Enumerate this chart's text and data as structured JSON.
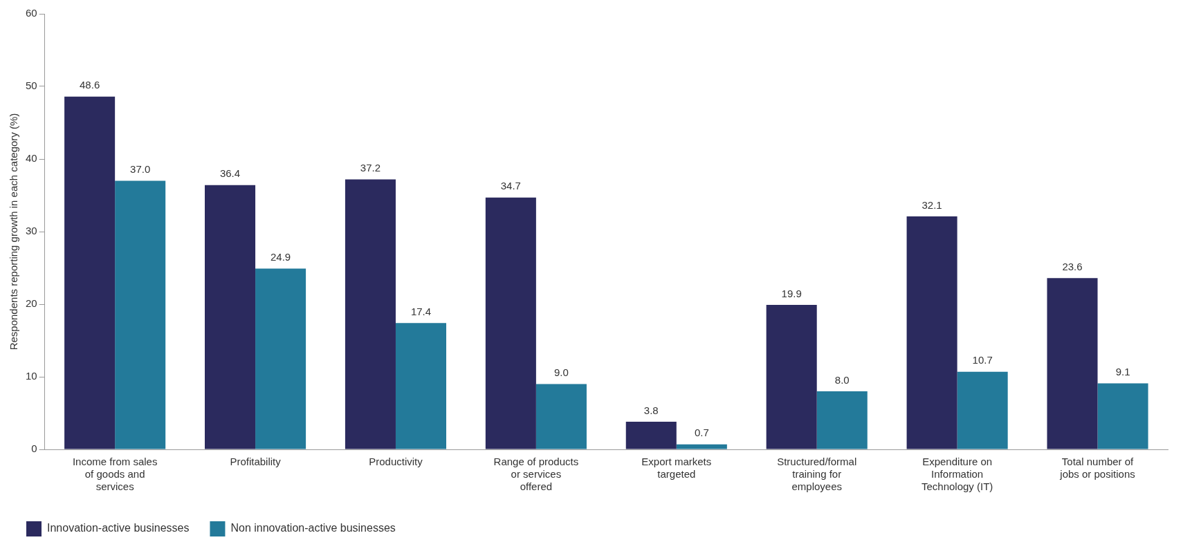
{
  "chart_data": {
    "type": "bar",
    "ylabel": "Respondents reporting growth in each category (%)",
    "categories": [
      "Income from sales of goods and services",
      "Profitability",
      "Productivity",
      "Range of products or services offered",
      "Export markets targeted",
      "Structured/formal training for employees",
      "Expenditure on Information Technology (IT)",
      "Total number of jobs or positions"
    ],
    "series": [
      {
        "name": "Innovation-active businesses",
        "color": "#2b2a5e",
        "values": [
          48.6,
          36.4,
          37.2,
          34.7,
          3.8,
          19.9,
          32.1,
          23.6
        ],
        "value_labels": [
          "48.6",
          "36.4",
          "37.2",
          "34.7",
          "3.8",
          "19.9",
          "32.1",
          "23.6"
        ]
      },
      {
        "name": "Non innovation-active businesses",
        "color": "#237a9a",
        "values": [
          37.0,
          24.9,
          17.4,
          9.0,
          0.7,
          8.0,
          10.7,
          9.1
        ],
        "value_labels": [
          "37.0",
          "24.9",
          "17.4",
          "9.0",
          "0.7",
          "8.0",
          "10.7",
          "9.1"
        ]
      }
    ],
    "ylim": [
      0,
      60
    ],
    "yticks": [
      0,
      10,
      20,
      30,
      40,
      50,
      60
    ],
    "grid": false,
    "legend": "bottom"
  }
}
